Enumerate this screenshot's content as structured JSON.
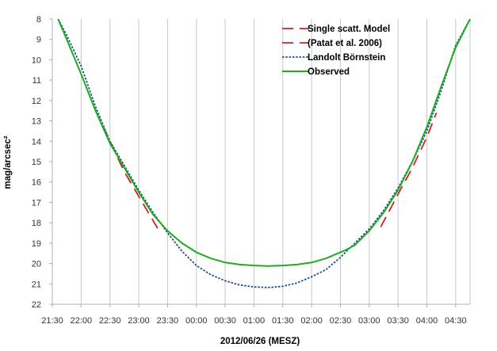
{
  "chart_data": {
    "type": "line",
    "xlabel": "2012/06/26 (MESZ)",
    "ylabel": "mag/arcsec²",
    "y_inverted": true,
    "ylim": [
      8,
      22
    ],
    "yticks": [
      "8",
      "9",
      "10",
      "11",
      "12",
      "13",
      "14",
      "15",
      "16",
      "17",
      "18",
      "19",
      "20",
      "21",
      "22"
    ],
    "xlim": [
      "21:30",
      "04:45"
    ],
    "xticks": [
      "21:30",
      "22:00",
      "22:30",
      "23:00",
      "23:30",
      "00:00",
      "00:30",
      "01:00",
      "01:30",
      "02:00",
      "02:30",
      "03:00",
      "03:30",
      "04:00",
      "04:30"
    ],
    "grid": "vertical",
    "legend_position": "top-right",
    "series": [
      {
        "name": "Single scatt. Model",
        "color": "#cc2222",
        "style": "long-dash",
        "segments": [
          {
            "x": [
              "22:15",
              "22:30",
              "22:45",
              "23:00",
              "23:10",
              "23:20"
            ],
            "y": [
              12.5,
              14.0,
              15.5,
              16.7,
              17.5,
              18.3
            ]
          },
          {
            "x": [
              "03:12",
              "03:20",
              "03:30",
              "03:45",
              "04:00",
              "04:10"
            ],
            "y": [
              18.2,
              17.5,
              16.6,
              15.3,
              13.8,
              12.6
            ]
          }
        ]
      },
      {
        "name": "(Patat et al. 2006)",
        "color": "#cc2222",
        "style": "long-dash",
        "segments": []
      },
      {
        "name": "Landolt Börnstein",
        "color": "#1f4e8c",
        "style": "dotted",
        "x": [
          "21:36",
          "21:45",
          "22:00",
          "22:15",
          "22:30",
          "22:45",
          "23:00",
          "23:15",
          "23:30",
          "23:45",
          "00:00",
          "00:15",
          "00:30",
          "00:45",
          "01:00",
          "01:15",
          "01:30",
          "01:45",
          "02:00",
          "02:15",
          "02:30",
          "02:45",
          "03:00",
          "03:15",
          "03:30",
          "03:45",
          "04:00",
          "04:15",
          "04:30",
          "04:45"
        ],
        "y": [
          8.0,
          8.8,
          10.3,
          12.3,
          14.0,
          15.2,
          16.4,
          17.5,
          18.5,
          19.4,
          20.1,
          20.55,
          20.85,
          21.05,
          21.15,
          21.18,
          21.12,
          20.95,
          20.65,
          20.3,
          19.7,
          19.0,
          18.3,
          17.4,
          16.3,
          15.0,
          13.5,
          11.5,
          9.3,
          8.0
        ]
      },
      {
        "name": "Observed",
        "color": "#22aa22",
        "style": "solid",
        "x": [
          "21:36",
          "21:45",
          "22:00",
          "22:15",
          "22:30",
          "22:45",
          "23:00",
          "23:15",
          "23:30",
          "23:45",
          "00:00",
          "00:15",
          "00:30",
          "00:45",
          "01:00",
          "01:15",
          "01:30",
          "01:45",
          "02:00",
          "02:15",
          "02:30",
          "02:35",
          "02:45",
          "03:00",
          "03:15",
          "03:30",
          "03:45",
          "04:00",
          "04:15",
          "04:30",
          "04:45"
        ],
        "y": [
          8.0,
          9.0,
          10.7,
          12.5,
          14.1,
          15.3,
          16.5,
          17.6,
          18.4,
          19.0,
          19.45,
          19.75,
          19.95,
          20.05,
          20.1,
          20.12,
          20.1,
          20.05,
          19.95,
          19.75,
          19.45,
          19.35,
          19.1,
          18.4,
          17.5,
          16.4,
          15.0,
          13.3,
          11.3,
          9.4,
          8.0
        ]
      }
    ]
  }
}
